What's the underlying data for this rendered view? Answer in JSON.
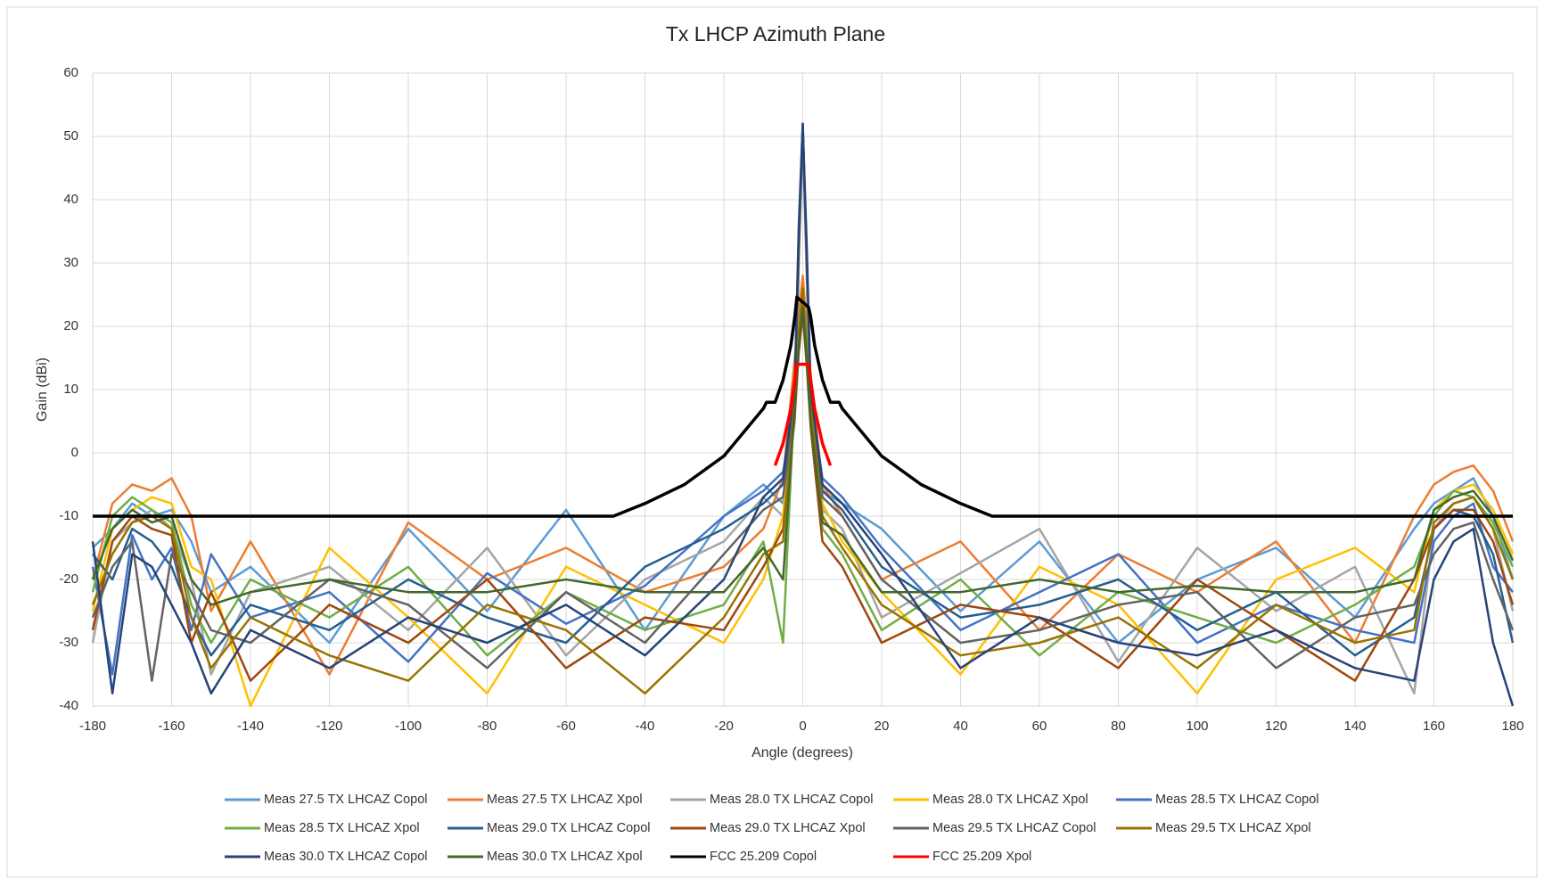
{
  "chart_data": {
    "type": "line",
    "title": "Tx LHCP Azimuth Plane",
    "x_label": "Angle (degrees)",
    "y_label": "Gain (dBi)",
    "xlim": [
      -180,
      180
    ],
    "xticks": [
      -180,
      -160,
      -140,
      -120,
      -100,
      -80,
      -60,
      -40,
      -20,
      0,
      20,
      40,
      60,
      80,
      100,
      120,
      140,
      160,
      180
    ],
    "ylim": [
      -40,
      60
    ],
    "yticks": [
      -40,
      -30,
      -20,
      -10,
      0,
      10,
      20,
      30,
      40,
      50,
      60
    ],
    "grid": true,
    "legend": "bottom",
    "series": [
      {
        "name": "Meas 27.5 TX LHCAZ Copol",
        "color": "#5b9bd5",
        "x": [
          -180,
          -175,
          -170,
          -165,
          -160,
          -155,
          -150,
          -140,
          -120,
          -100,
          -80,
          -60,
          -40,
          -20,
          -10,
          -5,
          -2,
          -1,
          0,
          1,
          2,
          5,
          10,
          20,
          40,
          60,
          80,
          100,
          120,
          140,
          155,
          160,
          165,
          170,
          175,
          180
        ],
        "values": [
          -15,
          -12,
          -8,
          -10,
          -9,
          -14,
          -22,
          -18,
          -30,
          -12,
          -25,
          -9,
          -28,
          -10,
          -5,
          -8,
          10,
          35,
          52,
          30,
          8,
          -6,
          -8,
          -12,
          -25,
          -14,
          -30,
          -20,
          -15,
          -26,
          -12,
          -8,
          -6,
          -4,
          -10,
          -20
        ]
      },
      {
        "name": "Meas 27.5 TX LHCAZ Xpol",
        "color": "#ed7d31",
        "x": [
          -180,
          -175,
          -170,
          -165,
          -160,
          -155,
          -150,
          -140,
          -120,
          -100,
          -80,
          -60,
          -40,
          -20,
          -10,
          -5,
          -2,
          -1,
          0,
          1,
          2,
          5,
          10,
          20,
          40,
          60,
          80,
          100,
          120,
          140,
          155,
          160,
          165,
          170,
          175,
          180
        ],
        "values": [
          -20,
          -8,
          -5,
          -6,
          -4,
          -10,
          -25,
          -14,
          -35,
          -11,
          -20,
          -15,
          -22,
          -18,
          -12,
          -4,
          15,
          22,
          28,
          20,
          12,
          -5,
          -10,
          -20,
          -14,
          -28,
          -16,
          -22,
          -14,
          -30,
          -10,
          -5,
          -3,
          -2,
          -6,
          -14
        ]
      },
      {
        "name": "Meas 28.0 TX LHCAZ Copol",
        "color": "#a5a5a5",
        "x": [
          -180,
          -175,
          -170,
          -165,
          -160,
          -155,
          -150,
          -140,
          -120,
          -100,
          -80,
          -60,
          -40,
          -20,
          -10,
          -5,
          -2,
          -1,
          0,
          1,
          2,
          5,
          10,
          20,
          40,
          60,
          80,
          100,
          120,
          140,
          155,
          160,
          165,
          170,
          175,
          180
        ],
        "values": [
          -30,
          -14,
          -11,
          -9,
          -12,
          -20,
          -35,
          -22,
          -18,
          -28,
          -15,
          -32,
          -20,
          -14,
          -7,
          -10,
          5,
          30,
          50,
          28,
          6,
          -9,
          -12,
          -26,
          -19,
          -12,
          -33,
          -15,
          -25,
          -18,
          -38,
          -12,
          -8,
          -7,
          -12,
          -25
        ]
      },
      {
        "name": "Meas 28.0 TX LHCAZ Xpol",
        "color": "#ffc000",
        "x": [
          -180,
          -175,
          -170,
          -165,
          -160,
          -155,
          -150,
          -140,
          -120,
          -100,
          -80,
          -60,
          -40,
          -20,
          -10,
          -5,
          -2,
          -1,
          0,
          1,
          2,
          5,
          10,
          20,
          40,
          60,
          80,
          100,
          120,
          140,
          155,
          160,
          165,
          170,
          175,
          180
        ],
        "values": [
          -25,
          -12,
          -9,
          -7,
          -8,
          -18,
          -20,
          -40,
          -15,
          -26,
          -38,
          -18,
          -24,
          -30,
          -20,
          -10,
          12,
          20,
          25,
          15,
          10,
          -8,
          -14,
          -22,
          -35,
          -18,
          -24,
          -38,
          -20,
          -15,
          -22,
          -9,
          -6,
          -5,
          -9,
          -16
        ]
      },
      {
        "name": "Meas 28.5 TX LHCAZ Copol",
        "color": "#4472c4",
        "x": [
          -180,
          -175,
          -170,
          -165,
          -160,
          -155,
          -150,
          -140,
          -120,
          -100,
          -80,
          -60,
          -40,
          -20,
          -10,
          -5,
          -2,
          -1,
          0,
          1,
          2,
          5,
          10,
          20,
          40,
          60,
          80,
          100,
          120,
          140,
          155,
          160,
          165,
          170,
          175,
          180
        ],
        "values": [
          -18,
          -35,
          -13,
          -20,
          -15,
          -28,
          -16,
          -26,
          -22,
          -33,
          -19,
          -27,
          -21,
          -10,
          -6,
          -3,
          8,
          33,
          51,
          32,
          9,
          -4,
          -7,
          -15,
          -28,
          -22,
          -16,
          -30,
          -24,
          -28,
          -30,
          -14,
          -10,
          -8,
          -18,
          -22
        ]
      },
      {
        "name": "Meas 28.5 TX LHCAZ Xpol",
        "color": "#70ad47",
        "x": [
          -180,
          -175,
          -170,
          -165,
          -160,
          -155,
          -150,
          -140,
          -120,
          -100,
          -80,
          -60,
          -40,
          -20,
          -10,
          -5,
          -2,
          -1,
          0,
          1,
          2,
          5,
          10,
          20,
          40,
          60,
          80,
          100,
          120,
          140,
          155,
          160,
          165,
          170,
          175,
          180
        ],
        "values": [
          -22,
          -10,
          -7,
          -9,
          -11,
          -24,
          -30,
          -20,
          -26,
          -18,
          -32,
          -22,
          -28,
          -24,
          -14,
          -30,
          10,
          18,
          24,
          18,
          6,
          -12,
          -16,
          -28,
          -20,
          -32,
          -22,
          -26,
          -30,
          -24,
          -18,
          -10,
          -6,
          -7,
          -11,
          -18
        ]
      },
      {
        "name": "Meas 29.0 TX LHCAZ Copol",
        "color": "#255e91",
        "x": [
          -180,
          -175,
          -170,
          -165,
          -160,
          -155,
          -150,
          -140,
          -120,
          -100,
          -80,
          -60,
          -40,
          -20,
          -10,
          -5,
          -2,
          -1,
          0,
          1,
          2,
          5,
          10,
          20,
          40,
          60,
          80,
          100,
          120,
          140,
          155,
          160,
          165,
          170,
          175,
          180
        ],
        "values": [
          -16,
          -20,
          -12,
          -14,
          -18,
          -26,
          -32,
          -24,
          -28,
          -20,
          -26,
          -30,
          -18,
          -12,
          -8,
          -5,
          9,
          34,
          51,
          31,
          7,
          -6,
          -9,
          -18,
          -26,
          -24,
          -20,
          -28,
          -22,
          -32,
          -26,
          -12,
          -9,
          -10,
          -16,
          -30
        ]
      },
      {
        "name": "Meas 29.0 TX LHCAZ Xpol",
        "color": "#9e480e",
        "x": [
          -180,
          -175,
          -170,
          -165,
          -160,
          -155,
          -150,
          -140,
          -120,
          -100,
          -80,
          -60,
          -40,
          -20,
          -10,
          -5,
          -2,
          -1,
          0,
          1,
          2,
          5,
          10,
          20,
          40,
          60,
          80,
          100,
          120,
          140,
          155,
          160,
          165,
          170,
          175,
          180
        ],
        "values": [
          -28,
          -14,
          -10,
          -12,
          -13,
          -30,
          -22,
          -36,
          -24,
          -30,
          -20,
          -34,
          -26,
          -28,
          -18,
          -12,
          6,
          16,
          22,
          14,
          4,
          -14,
          -18,
          -30,
          -24,
          -26,
          -34,
          -20,
          -28,
          -36,
          -20,
          -12,
          -9,
          -9,
          -14,
          -24
        ]
      },
      {
        "name": "Meas 29.5 TX LHCAZ Copol",
        "color": "#636363",
        "x": [
          -180,
          -175,
          -170,
          -165,
          -160,
          -155,
          -150,
          -140,
          -120,
          -100,
          -80,
          -60,
          -40,
          -20,
          -10,
          -5,
          -2,
          -1,
          0,
          1,
          2,
          5,
          10,
          20,
          40,
          60,
          80,
          100,
          120,
          140,
          155,
          160,
          165,
          170,
          175,
          180
        ],
        "values": [
          -26,
          -18,
          -14,
          -36,
          -16,
          -22,
          -28,
          -30,
          -20,
          -24,
          -34,
          -22,
          -30,
          -16,
          -9,
          -7,
          7,
          32,
          52,
          30,
          8,
          -7,
          -10,
          -20,
          -30,
          -28,
          -24,
          -22,
          -34,
          -26,
          -24,
          -16,
          -12,
          -11,
          -20,
          -28
        ]
      },
      {
        "name": "Meas 29.5 TX LHCAZ Xpol",
        "color": "#997300",
        "x": [
          -180,
          -175,
          -170,
          -165,
          -160,
          -155,
          -150,
          -140,
          -120,
          -100,
          -80,
          -60,
          -40,
          -20,
          -10,
          -5,
          -2,
          -1,
          0,
          1,
          2,
          5,
          10,
          20,
          40,
          60,
          80,
          100,
          120,
          140,
          155,
          160,
          165,
          170,
          175,
          180
        ],
        "values": [
          -24,
          -16,
          -11,
          -10,
          -12,
          -26,
          -34,
          -26,
          -32,
          -36,
          -24,
          -28,
          -38,
          -26,
          -16,
          -14,
          9,
          19,
          26,
          16,
          8,
          -10,
          -15,
          -24,
          -32,
          -30,
          -26,
          -34,
          -24,
          -30,
          -28,
          -11,
          -8,
          -7,
          -12,
          -20
        ]
      },
      {
        "name": "Meas 30.0 TX LHCAZ Copol",
        "color": "#264478",
        "x": [
          -180,
          -175,
          -170,
          -165,
          -160,
          -155,
          -150,
          -140,
          -120,
          -100,
          -80,
          -60,
          -40,
          -20,
          -10,
          -5,
          -2,
          -1,
          0,
          1,
          2,
          5,
          10,
          20,
          40,
          60,
          80,
          100,
          120,
          140,
          155,
          160,
          165,
          170,
          175,
          180
        ],
        "values": [
          -14,
          -38,
          -16,
          -18,
          -24,
          -30,
          -38,
          -28,
          -34,
          -26,
          -30,
          -24,
          -32,
          -20,
          -7,
          -4,
          11,
          36,
          52,
          33,
          10,
          -5,
          -8,
          -16,
          -34,
          -26,
          -30,
          -32,
          -28,
          -34,
          -36,
          -20,
          -14,
          -12,
          -30,
          -40
        ]
      },
      {
        "name": "Meas 30.0 TX LHCAZ Xpol",
        "color": "#43682b",
        "x": [
          -180,
          -175,
          -170,
          -165,
          -160,
          -155,
          -150,
          -140,
          -120,
          -100,
          -80,
          -60,
          -40,
          -20,
          -10,
          -5,
          -2,
          -1,
          0,
          1,
          2,
          5,
          10,
          20,
          40,
          60,
          80,
          100,
          120,
          140,
          155,
          160,
          165,
          170,
          175,
          180
        ],
        "values": [
          -20,
          -12,
          -9,
          -11,
          -10,
          -20,
          -24,
          -22,
          -20,
          -22,
          -22,
          -20,
          -22,
          -22,
          -15,
          -20,
          8,
          17,
          23,
          15,
          5,
          -11,
          -13,
          -22,
          -22,
          -20,
          -22,
          -21,
          -22,
          -22,
          -20,
          -9,
          -7,
          -6,
          -10,
          -17
        ]
      },
      {
        "name": "FCC 25.209 Copol",
        "color": "#000000",
        "x": [
          -180,
          -48,
          -40,
          -30,
          -20,
          -10,
          -9.2,
          -7,
          -5,
          -3,
          -2,
          -1.5,
          1.5,
          2,
          3,
          5,
          7,
          9.2,
          10,
          20,
          30,
          40,
          48,
          180
        ],
        "values": [
          -10,
          -10,
          -8,
          -5,
          -0.5,
          7,
          8,
          8,
          11.5,
          17,
          21.5,
          24.6,
          23,
          21.5,
          17,
          11.5,
          8,
          8,
          7,
          -0.5,
          -5,
          -8,
          -10,
          -10
        ]
      },
      {
        "name": "FCC 25.209 Xpol",
        "color": "#ff0000",
        "x": [
          -7,
          -5,
          -3,
          -2,
          -1.6,
          1.6,
          2,
          3,
          5,
          7
        ],
        "values": [
          -2,
          1.5,
          7,
          11.5,
          14,
          14,
          11.5,
          7,
          1.5,
          -2
        ]
      }
    ]
  }
}
